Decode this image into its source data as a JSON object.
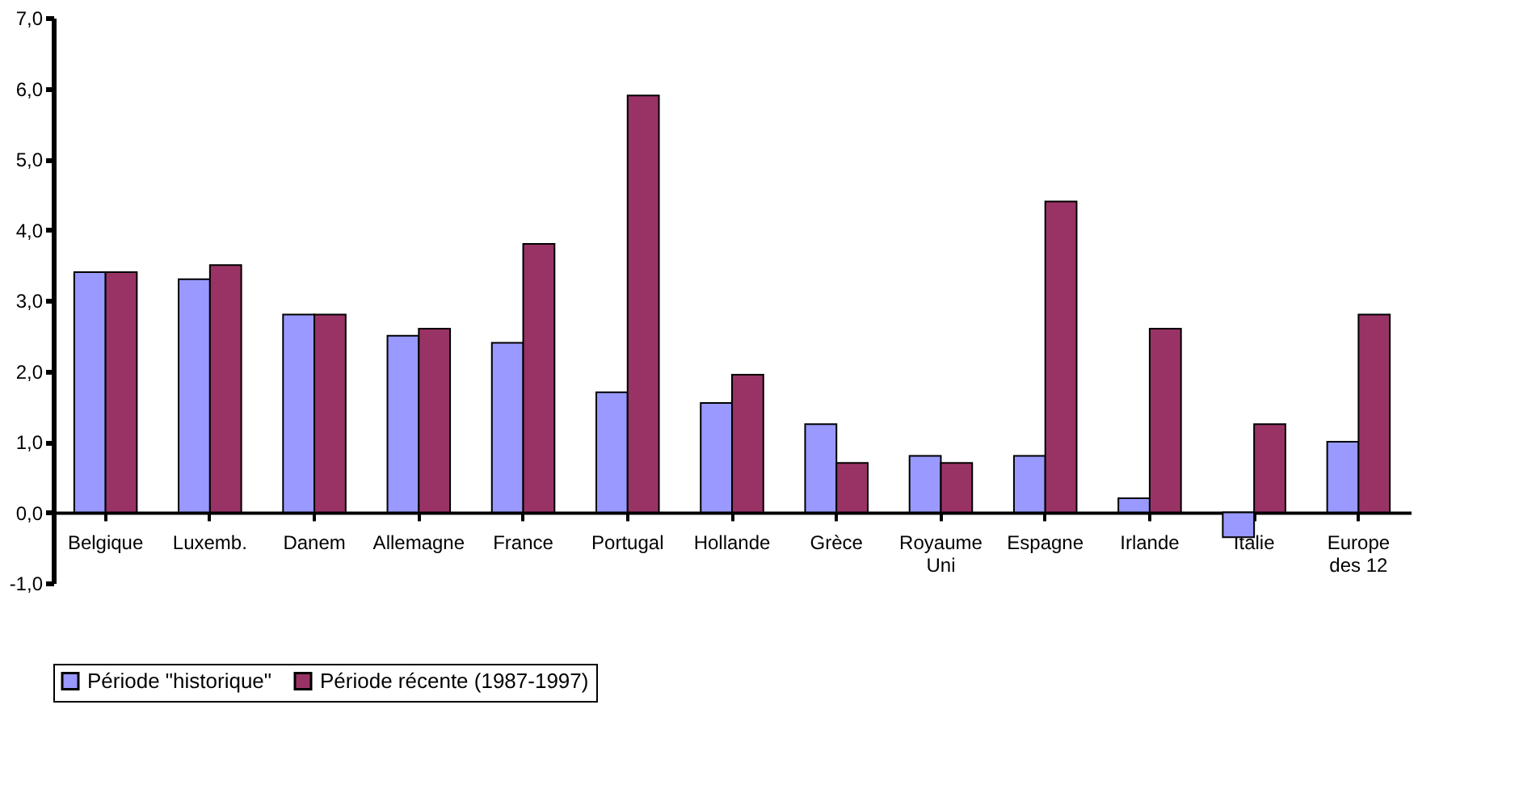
{
  "chart_data": {
    "type": "bar",
    "categories": [
      "Belgique",
      "Luxemb.",
      "Danem",
      "Allemagne",
      "France",
      "Portugal",
      "Hollande",
      "Grèce",
      "Royaume\nUni",
      "Espagne",
      "Irlande",
      "Italie",
      "Europe\ndes 12"
    ],
    "series": [
      {
        "name": "Période \"historique\"",
        "color": "#9999ff",
        "values": [
          3.4,
          3.3,
          2.8,
          2.5,
          2.4,
          1.7,
          1.55,
          1.25,
          0.8,
          0.8,
          0.2,
          -0.35,
          1.0
        ]
      },
      {
        "name": "Période récente (1987-1997)",
        "color": "#993366",
        "values": [
          3.4,
          3.5,
          2.8,
          2.6,
          3.8,
          5.9,
          1.95,
          0.7,
          0.7,
          4.4,
          2.6,
          1.25,
          2.8
        ]
      }
    ],
    "ylim": [
      -1,
      7
    ],
    "yticks": [
      {
        "value": -1,
        "label": "-1,0"
      },
      {
        "value": 0,
        "label": "0,0"
      },
      {
        "value": 1,
        "label": "1,0"
      },
      {
        "value": 2,
        "label": "2,0"
      },
      {
        "value": 3,
        "label": "3,0"
      },
      {
        "value": 4,
        "label": "4,0"
      },
      {
        "value": 5,
        "label": "5,0"
      },
      {
        "value": 6,
        "label": "6,0"
      },
      {
        "value": 7,
        "label": "7,0"
      }
    ],
    "grid": false,
    "legend": "bottom"
  }
}
